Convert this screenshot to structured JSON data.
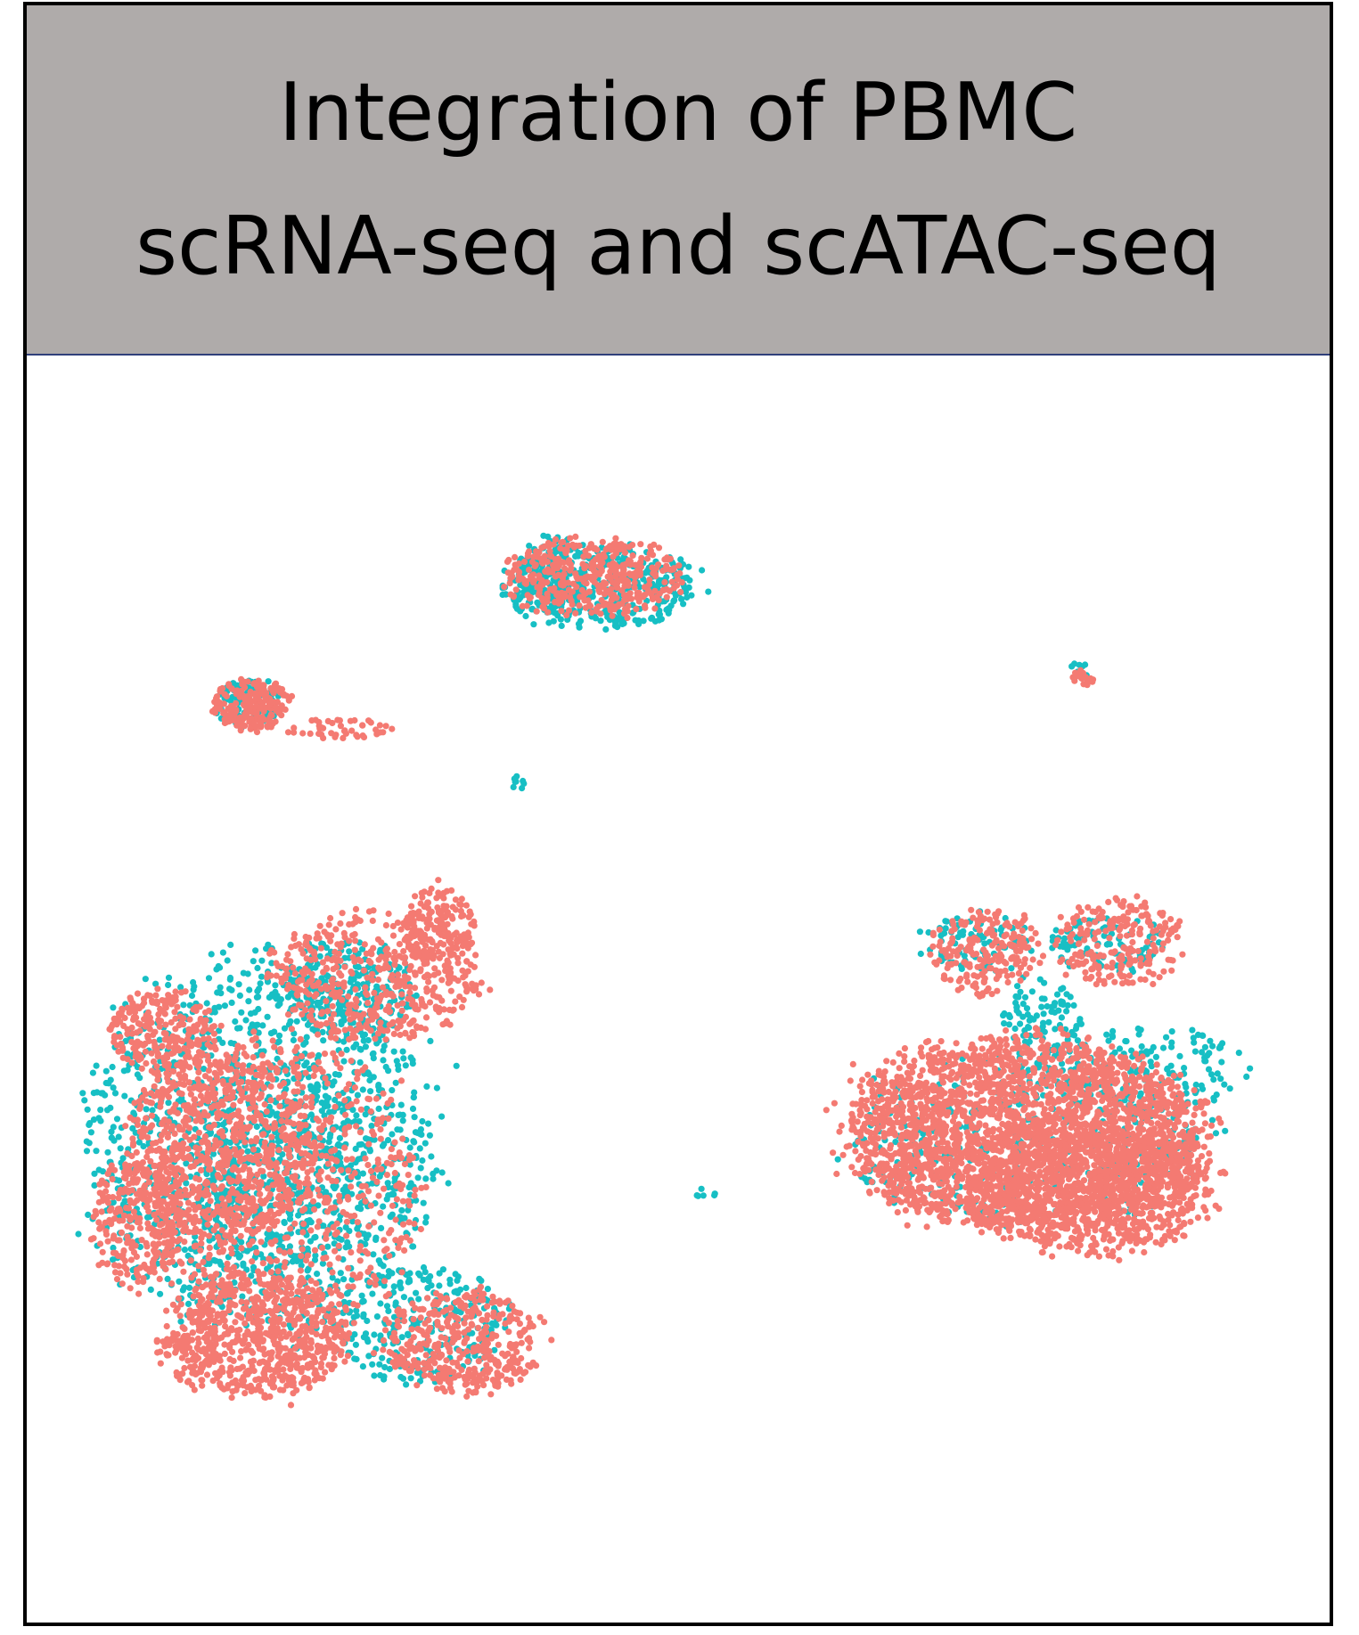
{
  "header": {
    "title_line1": "Integration of PBMC",
    "title_line2": "scRNA-seq and scATAC-seq"
  },
  "colors": {
    "header_bg": "#afabaa",
    "rna": "#f47a72",
    "atac": "#17bfc4"
  },
  "chart_data": {
    "type": "scatter",
    "xlabel": "",
    "ylabel": "",
    "axes_visible": false,
    "grid": false,
    "legend": "none",
    "xlim": [
      0,
      100
    ],
    "ylim": [
      0,
      100
    ],
    "series": [
      {
        "color": "#17bfc4",
        "clusters": [
          {
            "cx": 43.8,
            "cy": 81.8,
            "rx": 7.5,
            "ry": 3.2,
            "n": 380
          },
          {
            "cx": 40.5,
            "cy": 82.8,
            "rx": 2.5,
            "ry": 3.0,
            "n": 120
          },
          {
            "cx": 17.0,
            "cy": 72.5,
            "rx": 2.8,
            "ry": 1.8,
            "n": 90
          },
          {
            "cx": 18.0,
            "cy": 37.8,
            "rx": 13.5,
            "ry": 14.5,
            "n": 1300
          },
          {
            "cx": 25.0,
            "cy": 50.0,
            "rx": 5.0,
            "ry": 4.0,
            "n": 220
          },
          {
            "cx": 30.0,
            "cy": 23.5,
            "rx": 7.0,
            "ry": 4.5,
            "n": 260
          },
          {
            "cx": 19.0,
            "cy": 36.0,
            "rx": 6.5,
            "ry": 9.0,
            "n": 300
          },
          {
            "cx": 76.5,
            "cy": 38.0,
            "rx": 14.0,
            "ry": 6.5,
            "n": 360
          },
          {
            "cx": 85.5,
            "cy": 43.5,
            "rx": 9.0,
            "ry": 3.5,
            "n": 180
          },
          {
            "cx": 73.0,
            "cy": 53.5,
            "rx": 4.0,
            "ry": 2.5,
            "n": 90
          },
          {
            "cx": 83.0,
            "cy": 53.5,
            "rx": 4.5,
            "ry": 2.2,
            "n": 90
          },
          {
            "cx": 78.0,
            "cy": 48.0,
            "rx": 3.0,
            "ry": 3.0,
            "n": 90
          },
          {
            "cx": 80.8,
            "cy": 75.0,
            "rx": 0.8,
            "ry": 0.8,
            "n": 10
          },
          {
            "cx": 37.8,
            "cy": 66.5,
            "rx": 0.6,
            "ry": 0.8,
            "n": 8
          },
          {
            "cx": 52.2,
            "cy": 33.8,
            "rx": 0.9,
            "ry": 0.4,
            "n": 6
          }
        ]
      },
      {
        "color": "#f47a72",
        "clusters": [
          {
            "cx": 43.5,
            "cy": 82.5,
            "rx": 7.0,
            "ry": 3.0,
            "n": 420
          },
          {
            "cx": 17.2,
            "cy": 72.5,
            "rx": 3.0,
            "ry": 2.0,
            "n": 200
          },
          {
            "cx": 24.0,
            "cy": 70.5,
            "rx": 4.0,
            "ry": 0.8,
            "n": 45
          },
          {
            "cx": 10.5,
            "cy": 46.5,
            "rx": 4.0,
            "ry": 3.5,
            "n": 260
          },
          {
            "cx": 27.0,
            "cy": 51.0,
            "rx": 8.0,
            "ry": 5.0,
            "n": 480
          },
          {
            "cx": 31.5,
            "cy": 55.0,
            "rx": 2.8,
            "ry": 3.0,
            "n": 160
          },
          {
            "cx": 15.0,
            "cy": 37.0,
            "rx": 7.5,
            "ry": 7.5,
            "n": 700
          },
          {
            "cx": 8.5,
            "cy": 31.5,
            "rx": 3.5,
            "ry": 5.0,
            "n": 260
          },
          {
            "cx": 17.5,
            "cy": 22.5,
            "rx": 7.0,
            "ry": 5.0,
            "n": 700
          },
          {
            "cx": 33.5,
            "cy": 22.0,
            "rx": 6.0,
            "ry": 4.0,
            "n": 400
          },
          {
            "cx": 20.0,
            "cy": 34.0,
            "rx": 10.0,
            "ry": 12.0,
            "n": 700
          },
          {
            "cx": 76.5,
            "cy": 38.5,
            "rx": 13.5,
            "ry": 7.5,
            "n": 2600
          },
          {
            "cx": 82.0,
            "cy": 34.0,
            "rx": 9.0,
            "ry": 5.0,
            "n": 900
          },
          {
            "cx": 73.5,
            "cy": 53.0,
            "rx": 4.0,
            "ry": 3.5,
            "n": 200
          },
          {
            "cx": 84.0,
            "cy": 53.5,
            "rx": 5.0,
            "ry": 3.5,
            "n": 220
          },
          {
            "cx": 81.0,
            "cy": 74.5,
            "rx": 0.9,
            "ry": 0.7,
            "n": 18
          }
        ]
      }
    ]
  }
}
